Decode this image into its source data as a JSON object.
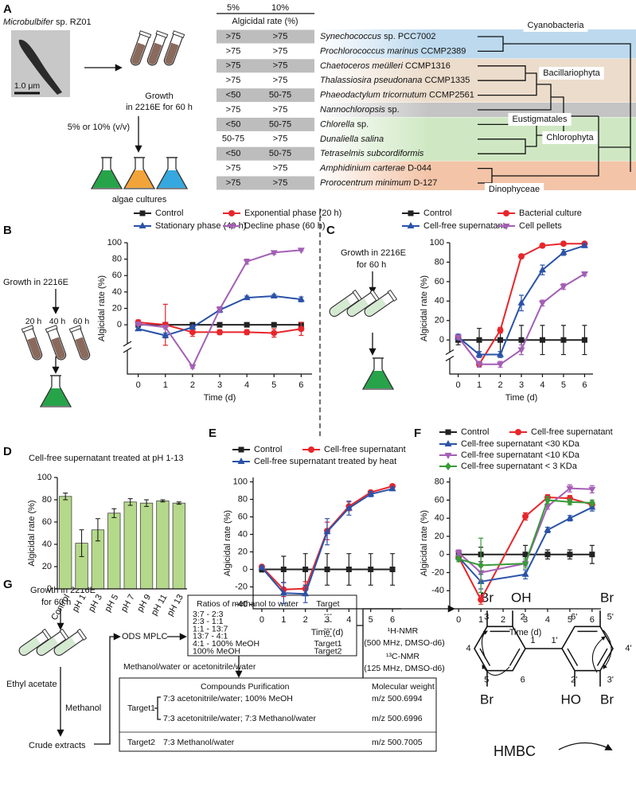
{
  "panel_a": {
    "panel": "A",
    "organism_genus": "Microbulbifer",
    "organism_strain": "sp. RZ01",
    "scale_bar": "1.0 μm",
    "growth": "Growth",
    "growth_condition": "in 2216E for 60 h",
    "dose": "5% or 10% (v/v)",
    "algae": "algae cultures",
    "col_5": "5%",
    "col_10": "10%",
    "col_caption": "Algicidal rate (%)",
    "rows": [
      {
        "v5": ">75",
        "v10": ">75",
        "taxon": "Synechococcus",
        "strain": "sp. PCC7002"
      },
      {
        "v5": ">75",
        "v10": ">75",
        "taxon": "Prochlorococcus marinus",
        "strain": "CCMP2389"
      },
      {
        "v5": ">75",
        "v10": ">75",
        "taxon": "Chaetoceros meülleri",
        "strain": "CCMP1316"
      },
      {
        "v5": ">75",
        "v10": ">75",
        "taxon": "Thalassiosira pseudonana",
        "strain": "CCMP1335"
      },
      {
        "v5": "<50",
        "v10": "50-75",
        "taxon": "Phaeodactylum tricornutum",
        "strain": "CCMP2561"
      },
      {
        "v5": ">75",
        "v10": ">75",
        "taxon": "Nannochloropsis",
        "strain": "sp."
      },
      {
        "v5": "<50",
        "v10": "50-75",
        "taxon": "Chlorella",
        "strain": "sp."
      },
      {
        "v5": "50-75",
        "v10": ">75",
        "taxon": "Dunaliella salina"
      },
      {
        "v5": "<50",
        "v10": "50-75",
        "taxon": "Tetraselmis subcordiformis"
      },
      {
        "v5": ">75",
        "v10": ">75",
        "taxon": "Amphidinium carterae",
        "strain": "D-044"
      },
      {
        "v5": ">75",
        "v10": ">75",
        "taxon": "Prorocentrum minimum",
        "strain": "D-127"
      }
    ],
    "groups": [
      "Cyanobacteria",
      "Bacillariophyta",
      "Eustigmatales",
      "Chlorophyta",
      "Dinophyceae"
    ]
  },
  "panel_b_scheme": {
    "growth": "Growth in 2216E",
    "times": [
      "20 h",
      "40 h",
      "60 h"
    ]
  },
  "panel_c_scheme": {
    "growth": "Growth in 2216E",
    "duration": "for 60 h"
  },
  "chart_data": [
    {
      "panel": "B",
      "type": "line",
      "axis_break": true,
      "x": [
        0,
        1,
        2,
        3,
        4,
        5,
        6
      ],
      "xlim": [
        -0.4,
        6.4
      ],
      "xticks": [
        0,
        1,
        2,
        3,
        4,
        5,
        6
      ],
      "ylim": [
        -60,
        100
      ],
      "yticks": [
        0,
        20,
        40,
        60,
        80,
        100
      ],
      "xlabel": "Time (d)",
      "ylabel": "Algicidal rate (%)",
      "series": [
        {
          "name": "Control",
          "color": "#222222",
          "marker": "square",
          "values": [
            0,
            0,
            0,
            0,
            0,
            0,
            0
          ],
          "errors": [
            2,
            2,
            2,
            2,
            2,
            2,
            2
          ]
        },
        {
          "name": "Exponential phase (20 h)",
          "color": "#e8262b",
          "marker": "circle",
          "values": [
            3,
            0,
            -9,
            -9,
            -9,
            -10,
            -5
          ],
          "errors": [
            3,
            25,
            5,
            3,
            3,
            5,
            8
          ]
        },
        {
          "name": "Stationary phase (40 h)",
          "color": "#2a52a8",
          "marker": "triangle",
          "values": [
            -5,
            -13,
            -3,
            18,
            33,
            35,
            31
          ],
          "errors": [
            2,
            3,
            2,
            3,
            2,
            2,
            3
          ]
        },
        {
          "name": "Decline phase (60 h)",
          "color": "#a45fb5",
          "marker": "triangle-down",
          "values": [
            1,
            -3,
            -51,
            19,
            77,
            88,
            91
          ],
          "errors": [
            2,
            2,
            2,
            3,
            3,
            2,
            1
          ]
        }
      ]
    },
    {
      "panel": "C",
      "type": "line",
      "axis_break": true,
      "x": [
        0,
        1,
        2,
        3,
        4,
        5,
        6
      ],
      "xlim": [
        -0.4,
        6.4
      ],
      "xticks": [
        0,
        1,
        2,
        3,
        4,
        5,
        6
      ],
      "ylim": [
        -35,
        100
      ],
      "yticks": [
        0,
        20,
        40,
        60,
        80,
        100
      ],
      "xlabel": "Time (d)",
      "ylabel": "Algicidal rate (%)",
      "series": [
        {
          "name": "Control",
          "color": "#222222",
          "marker": "square",
          "values": [
            0,
            0,
            0,
            0,
            0,
            0,
            0
          ],
          "errors": [
            5,
            12,
            12,
            15,
            15,
            15,
            15
          ]
        },
        {
          "name": "Bacterial culture",
          "color": "#e8262b",
          "marker": "circle",
          "values": [
            3,
            -25,
            10,
            86,
            97,
            99,
            99
          ],
          "errors": [
            2,
            3,
            3,
            2,
            2,
            1,
            1
          ]
        },
        {
          "name": "Cell-free supernatant",
          "color": "#2a52a8",
          "marker": "triangle",
          "values": [
            3,
            -15,
            -15,
            38,
            72,
            90,
            97
          ],
          "errors": [
            3,
            3,
            3,
            8,
            5,
            3,
            2
          ]
        },
        {
          "name": "Cell pellets",
          "color": "#a45fb5",
          "marker": "triangle-down",
          "values": [
            3,
            -25,
            -25,
            -10,
            38,
            55,
            68
          ],
          "errors": [
            2,
            3,
            3,
            5,
            3,
            3,
            2
          ]
        }
      ]
    },
    {
      "panel": "D",
      "type": "bar",
      "title": "Cell-free supernatant treated at pH 1-13",
      "categories": [
        "Control",
        "pH 1",
        "pH 3",
        "pH 5",
        "pH 7",
        "pH 9",
        "pH 11",
        "pH 13"
      ],
      "values": [
        83,
        41,
        53,
        68,
        78,
        77,
        79,
        77
      ],
      "errors": [
        3,
        12,
        10,
        4,
        3,
        3,
        1,
        1
      ],
      "color": "#b5d98a",
      "ylim": [
        0,
        100
      ],
      "yticks": [
        0,
        20,
        40,
        60,
        80,
        100
      ],
      "ylabel": "Algicidal rate (%)"
    },
    {
      "panel": "E",
      "type": "line",
      "x": [
        0,
        1,
        2,
        3,
        4,
        5,
        6
      ],
      "xlim": [
        -0.4,
        6.4
      ],
      "xticks": [
        0,
        1,
        2,
        3,
        4,
        5,
        6
      ],
      "ylim": [
        -45,
        105
      ],
      "yticks": [
        -40,
        -20,
        0,
        20,
        40,
        60,
        80,
        100
      ],
      "xlabel": "Time (d)",
      "ylabel": "Algicidal rate (%)",
      "series": [
        {
          "name": "Control",
          "color": "#222222",
          "marker": "square",
          "values": [
            0,
            0,
            0,
            0,
            0,
            0,
            0
          ],
          "errors": [
            3,
            15,
            18,
            18,
            18,
            18,
            18
          ]
        },
        {
          "name": "Cell-free supernatant",
          "color": "#e8262b",
          "marker": "circle",
          "values": [
            3,
            -23,
            -22,
            44,
            72,
            88,
            95
          ],
          "errors": [
            2,
            8,
            8,
            10,
            5,
            2,
            2
          ]
        },
        {
          "name": "Cell-free supernatant treated by heat",
          "color": "#2a52a8",
          "marker": "triangle",
          "values": [
            2,
            -27,
            -28,
            43,
            70,
            86,
            92
          ],
          "errors": [
            2,
            12,
            10,
            15,
            8,
            3,
            2
          ]
        }
      ]
    },
    {
      "panel": "F",
      "type": "line",
      "x": [
        0,
        1,
        3,
        4,
        5,
        6
      ],
      "xlim": [
        -0.4,
        6.4
      ],
      "xticks": [
        0,
        1,
        2,
        3,
        4,
        5,
        6
      ],
      "ylim": [
        -60,
        85
      ],
      "yticks": [
        -40,
        -20,
        0,
        20,
        40,
        60,
        80
      ],
      "xlabel": "Time (d)",
      "ylabel": "Algicidal rate (%)",
      "series": [
        {
          "name": "Control",
          "color": "#222222",
          "marker": "square",
          "values": [
            0,
            0,
            0,
            0,
            0,
            0
          ],
          "errors": [
            3,
            8,
            10,
            5,
            5,
            10
          ]
        },
        {
          "name": "Cell-free supernatant",
          "color": "#e8262b",
          "marker": "circle",
          "values": [
            -3,
            -50,
            42,
            63,
            62,
            55
          ],
          "errors": [
            3,
            5,
            4,
            3,
            3,
            3
          ]
        },
        {
          "name": "Cell-free supernatant <30 KDa",
          "color": "#2a52a8",
          "marker": "triangle",
          "values": [
            -3,
            -30,
            -22,
            27,
            40,
            52
          ],
          "errors": [
            3,
            8,
            5,
            3,
            3,
            4
          ]
        },
        {
          "name": "Cell-free supernatant <10 KDa",
          "color": "#a45fb5",
          "marker": "triangle-down",
          "values": [
            2,
            -20,
            -10,
            53,
            73,
            72
          ],
          "errors": [
            3,
            8,
            3,
            3,
            4,
            4
          ]
        },
        {
          "name": "Cell-free supernatant < 3 KDa",
          "color": "#3a9a3a",
          "marker": "diamond",
          "values": [
            -5,
            -12,
            -10,
            60,
            58,
            57
          ],
          "errors": [
            3,
            30,
            5,
            4,
            3,
            3
          ]
        }
      ]
    }
  ],
  "panel_g": {
    "panel": "G",
    "growth": "Growth in 2216E",
    "duration": "for 60 h",
    "solvent_1": "Ethyl acetate",
    "solvent_2": "Methanol",
    "crude": "Crude extracts",
    "mplc": "ODS MPLC",
    "ratio_header": [
      "Ratios of methanol to water",
      "Target"
    ],
    "ratio_rows": [
      [
        "3:7 - 2:3",
        "---"
      ],
      [
        "2:3 - 1:1",
        "---"
      ],
      [
        "1:1 - 13:7",
        "---"
      ],
      [
        "13:7 - 4:1",
        "---"
      ],
      [
        "4:1 - 100% MeOH",
        "Target1"
      ],
      [
        "100% MeOH",
        "Target2"
      ]
    ],
    "eluent": "Methanol/water or acetonitrile/water",
    "purification_header": [
      "Compounds Purification",
      "Molecular weight"
    ],
    "purification": [
      {
        "target": "Target1",
        "rows": [
          [
            "7:3 acetonitrile/water; 100% MeOH",
            "m/z 500.6994"
          ],
          [
            "7:3 acetonitrile/water; 7:3 Methanol/water",
            "m/z 500.6996"
          ]
        ]
      },
      {
        "target": "Target2",
        "rows": [
          [
            "7:3 Methanol/water",
            "m/z 500.7005"
          ]
        ]
      }
    ],
    "nmr": [
      "¹H-NMR",
      "(500 MHz, DMSO-d6)",
      "¹³C-NMR",
      "(125 MHz, DMSO-d6)"
    ],
    "structure": {
      "substituents": [
        "Br",
        "OH",
        "Br",
        "Br",
        "HO",
        "Br"
      ],
      "ring1": [
        "1",
        "2",
        "3",
        "4",
        "5",
        "6"
      ],
      "ring2": [
        "1'",
        "2'",
        "3'",
        "4'",
        "5'",
        "6'"
      ]
    },
    "hmbc": "HMBC"
  }
}
